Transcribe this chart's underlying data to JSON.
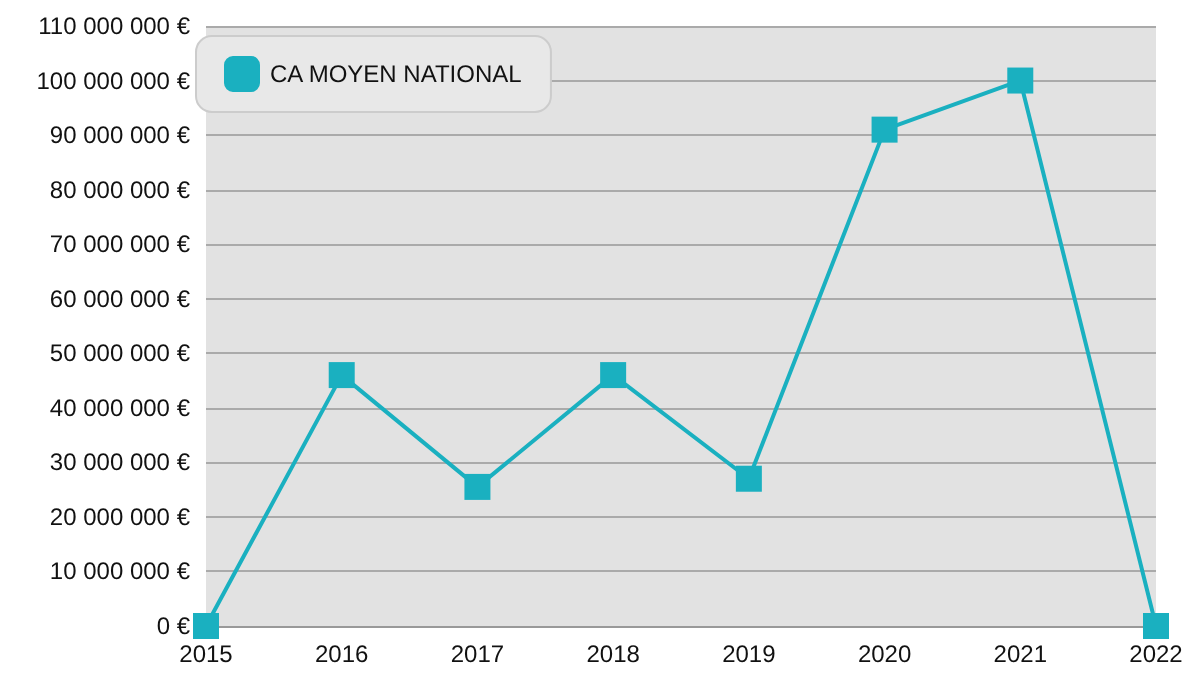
{
  "chart_data": {
    "type": "line",
    "categories": [
      "2015",
      "2016",
      "2017",
      "2018",
      "2019",
      "2020",
      "2021",
      "2022"
    ],
    "series": [
      {
        "name": "CA MOYEN NATIONAL",
        "color": "#1ab0c0",
        "values": [
          0,
          46000000,
          25500000,
          46000000,
          27000000,
          91000000,
          100000000,
          0
        ]
      }
    ],
    "ylim": [
      0,
      110000000
    ],
    "yticks": [
      {
        "value": 0,
        "label": "0 €"
      },
      {
        "value": 10000000,
        "label": "10 000 000 €"
      },
      {
        "value": 20000000,
        "label": "20 000 000 €"
      },
      {
        "value": 30000000,
        "label": "30 000 000 €"
      },
      {
        "value": 40000000,
        "label": "40 000 000 €"
      },
      {
        "value": 50000000,
        "label": "50 000 000 €"
      },
      {
        "value": 60000000,
        "label": "60 000 000 €"
      },
      {
        "value": 70000000,
        "label": "70 000 000 €"
      },
      {
        "value": 80000000,
        "label": "80 000 000 €"
      },
      {
        "value": 90000000,
        "label": "90 000 000 €"
      },
      {
        "value": 100000000,
        "label": "100 000 000 €"
      },
      {
        "value": 110000000,
        "label": "110 000 000 €"
      }
    ],
    "grid": "y",
    "legend": "top left",
    "marker": "square",
    "line_style": "solid"
  }
}
